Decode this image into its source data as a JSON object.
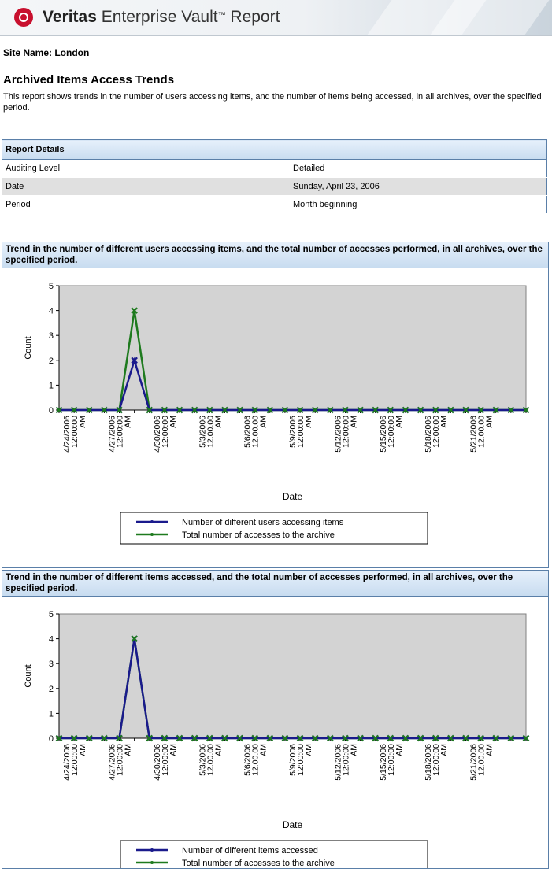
{
  "header": {
    "brand_bold": "Veritas",
    "brand_rest": " Enterprise Vault",
    "brand_tm": "™",
    "brand_end": " Report"
  },
  "site_name": "Site Name: London",
  "report_title": "Archived Items Access Trends",
  "report_description": "This report shows trends in the number of users accessing items, and the number of items being accessed, in all archives, over the specified period.",
  "details": {
    "heading": "Report Details",
    "rows": [
      {
        "label": "Auditing Level",
        "value": "Detailed"
      },
      {
        "label": "Date",
        "value": "Sunday, April 23, 2006"
      },
      {
        "label": "Period",
        "value": "Month beginning"
      }
    ]
  },
  "colors": {
    "series_blue": "#1a1a8c",
    "series_green": "#1e7a1e",
    "plot_bg": "#d3d3d3"
  },
  "chart_data": [
    {
      "type": "line",
      "title": "Trend in the number of different users accessing items, and the total number of accesses performed, in all archives, over the specified period.",
      "xlabel": "Date",
      "ylabel": "Count",
      "ylim": [
        0,
        5
      ],
      "yticks": [
        0,
        1,
        2,
        3,
        4,
        5
      ],
      "tick_labels": [
        "4/24/2006 12:00:00 AM",
        "4/27/2006 12:00:00 AM",
        "4/30/2006 12:00:00 AM",
        "5/3/2006 12:00:00 AM",
        "5/6/2006 12:00:00 AM",
        "5/9/2006 12:00:00 AM",
        "5/12/2006 12:00:00 AM",
        "5/15/2006 12:00:00 AM",
        "5/18/2006 12:00:00 AM",
        "5/21/2006 12:00:00 AM"
      ],
      "x": [
        "4/23/2006",
        "4/24/2006",
        "4/25/2006",
        "4/26/2006",
        "4/27/2006",
        "4/28/2006",
        "4/29/2006",
        "4/30/2006",
        "5/1/2006",
        "5/2/2006",
        "5/3/2006",
        "5/4/2006",
        "5/5/2006",
        "5/6/2006",
        "5/7/2006",
        "5/8/2006",
        "5/9/2006",
        "5/10/2006",
        "5/11/2006",
        "5/12/2006",
        "5/13/2006",
        "5/14/2006",
        "5/15/2006",
        "5/16/2006",
        "5/17/2006",
        "5/18/2006",
        "5/19/2006",
        "5/20/2006",
        "5/21/2006",
        "5/22/2006",
        "5/23/2006",
        "5/24/2006"
      ],
      "series": [
        {
          "name": "Number of different users accessing items",
          "color": "#1a1a8c",
          "values": [
            0,
            0,
            0,
            0,
            0,
            2,
            0,
            0,
            0,
            0,
            0,
            0,
            0,
            0,
            0,
            0,
            0,
            0,
            0,
            0,
            0,
            0,
            0,
            0,
            0,
            0,
            0,
            0,
            0,
            0,
            0,
            0
          ]
        },
        {
          "name": "Total number of accesses to the archive",
          "color": "#1e7a1e",
          "values": [
            0,
            0,
            0,
            0,
            0,
            4,
            0,
            0,
            0,
            0,
            0,
            0,
            0,
            0,
            0,
            0,
            0,
            0,
            0,
            0,
            0,
            0,
            0,
            0,
            0,
            0,
            0,
            0,
            0,
            0,
            0,
            0
          ]
        }
      ],
      "grid": false,
      "legend": "bottom-center"
    },
    {
      "type": "line",
      "title": "Trend in the number of different items accessed, and the total number of accesses performed, in all archives, over the specified period.",
      "xlabel": "Date",
      "ylabel": "Count",
      "ylim": [
        0,
        5
      ],
      "yticks": [
        0,
        1,
        2,
        3,
        4,
        5
      ],
      "tick_labels": [
        "4/24/2006 12:00:00 AM",
        "4/27/2006 12:00:00 AM",
        "4/30/2006 12:00:00 AM",
        "5/3/2006 12:00:00 AM",
        "5/6/2006 12:00:00 AM",
        "5/9/2006 12:00:00 AM",
        "5/12/2006 12:00:00 AM",
        "5/15/2006 12:00:00 AM",
        "5/18/2006 12:00:00 AM",
        "5/21/2006 12:00:00 AM"
      ],
      "x": [
        "4/23/2006",
        "4/24/2006",
        "4/25/2006",
        "4/26/2006",
        "4/27/2006",
        "4/28/2006",
        "4/29/2006",
        "4/30/2006",
        "5/1/2006",
        "5/2/2006",
        "5/3/2006",
        "5/4/2006",
        "5/5/2006",
        "5/6/2006",
        "5/7/2006",
        "5/8/2006",
        "5/9/2006",
        "5/10/2006",
        "5/11/2006",
        "5/12/2006",
        "5/13/2006",
        "5/14/2006",
        "5/15/2006",
        "5/16/2006",
        "5/17/2006",
        "5/18/2006",
        "5/19/2006",
        "5/20/2006",
        "5/21/2006",
        "5/22/2006",
        "5/23/2006",
        "5/24/2006"
      ],
      "series": [
        {
          "name": "Number of different items accessed",
          "color": "#1a1a8c",
          "values": [
            0,
            0,
            0,
            0,
            0,
            4,
            0,
            0,
            0,
            0,
            0,
            0,
            0,
            0,
            0,
            0,
            0,
            0,
            0,
            0,
            0,
            0,
            0,
            0,
            0,
            0,
            0,
            0,
            0,
            0,
            0,
            0
          ]
        },
        {
          "name": "Total number of accesses to the archive",
          "color": "#1e7a1e",
          "values": [
            0,
            0,
            0,
            0,
            0,
            4,
            0,
            0,
            0,
            0,
            0,
            0,
            0,
            0,
            0,
            0,
            0,
            0,
            0,
            0,
            0,
            0,
            0,
            0,
            0,
            0,
            0,
            0,
            0,
            0,
            0,
            0
          ]
        }
      ],
      "grid": false,
      "legend": "bottom-center"
    }
  ]
}
